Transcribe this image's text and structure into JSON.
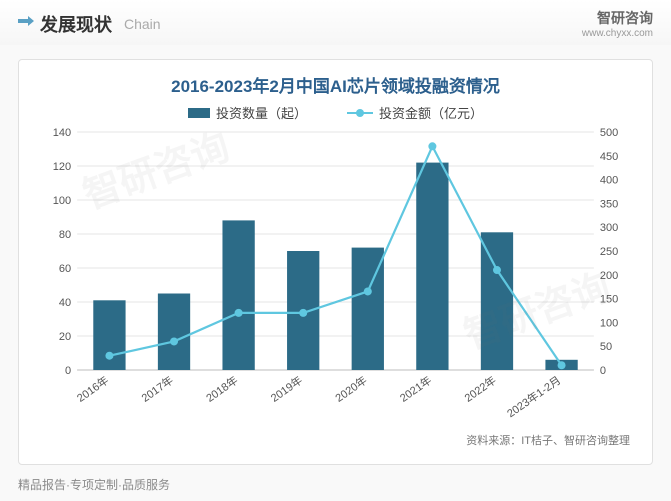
{
  "header": {
    "title": "发展现状",
    "subtitle": "Chain",
    "brand_name": "智研咨询",
    "brand_url": "www.chyxx.com"
  },
  "chart": {
    "type": "bar+line",
    "title": "2016-2023年2月中国AI芯片领域投融资情况",
    "title_color": "#2c5f8d",
    "title_fontsize": 17,
    "legend": {
      "bar_label": "投资数量（起）",
      "line_label": "投资金额（亿元）"
    },
    "categories": [
      "2016年",
      "2017年",
      "2018年",
      "2019年",
      "2020年",
      "2021年",
      "2022年",
      "2023年1-2月"
    ],
    "bar_series": {
      "name": "投资数量（起）",
      "values": [
        41,
        45,
        88,
        70,
        72,
        122,
        81,
        6
      ],
      "color": "#2c6b87",
      "bar_width": 0.5
    },
    "line_series": {
      "name": "投资金额（亿元）",
      "values": [
        30,
        60,
        120,
        120,
        165,
        470,
        210,
        10
      ],
      "color": "#5fc7e0",
      "marker_radius": 4,
      "line_width": 2.2
    },
    "y_left": {
      "min": 0,
      "max": 140,
      "step": 20
    },
    "y_right": {
      "min": 0,
      "max": 500,
      "step": 50
    },
    "background_color": "#ffffff",
    "grid_color": "#e6e6e6",
    "axis_color": "#bcbcbc",
    "label_fontsize": 11,
    "label_color": "#555555"
  },
  "source": "资料来源：IT桔子、智研咨询整理",
  "footer": "精品报告·专项定制·品质服务",
  "watermark": "智研咨询"
}
